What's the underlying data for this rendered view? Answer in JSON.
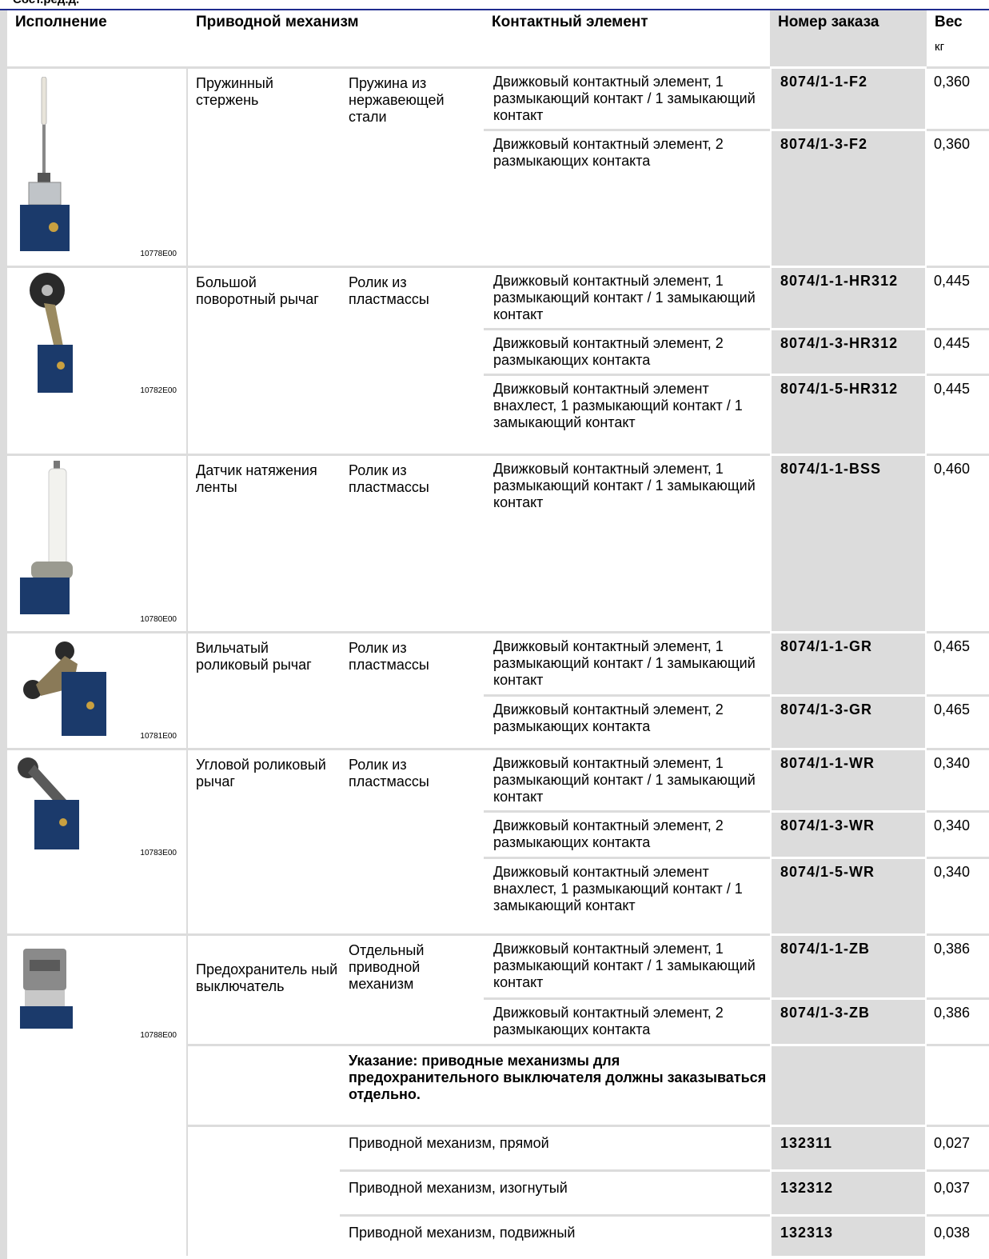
{
  "page_header": {
    "cut_title": "Сост.ред.д."
  },
  "table": {
    "headers": {
      "variant": "Исполнение",
      "actuator": "Приводной механизм",
      "contact": "Контактный элемент",
      "order": "Номер заказа",
      "weight": "Вес",
      "weight_unit": "кг"
    },
    "groups": [
      {
        "caption": "10778E00",
        "image_icon": "spring-rod-switch-photo",
        "actuator": "Пружинный стержень",
        "actuator_detail": "Пружина из нержавеющей стали",
        "rows": [
          {
            "contact": "Движковый контактный элемент, 1 размыкающий контакт / 1 замыкающий контакт",
            "order": "8074/1-1-F2",
            "weight": "0,360"
          },
          {
            "contact": "Движковый контактный элемент, 2 размыкающих контакта",
            "order": "8074/1-3-F2",
            "weight": "0,360"
          }
        ]
      },
      {
        "caption": "10782E00",
        "image_icon": "large-rotary-lever-switch-photo",
        "actuator": "Большой поворотный рычаг",
        "actuator_detail": "Ролик из пластмассы",
        "rows": [
          {
            "contact": "Движковый контактный элемент, 1 размыкающий контакт / 1 замыкающий контакт",
            "order": "8074/1-1-HR312",
            "weight": "0,445"
          },
          {
            "contact": "Движковый контактный элемент, 2 размыкающих контакта",
            "order": "8074/1-3-HR312",
            "weight": "0,445"
          },
          {
            "contact": "Движковый контактный элемент внахлест, 1 размыкающий контакт / 1 замыкающий контакт",
            "order": "8074/1-5-HR312",
            "weight": "0,445"
          }
        ]
      },
      {
        "caption": "10780E00",
        "image_icon": "belt-tension-sensor-photo",
        "actuator": "Датчик натяжения ленты",
        "actuator_detail": "Ролик из пластмассы",
        "rows": [
          {
            "contact": "Движковый контактный элемент, 1 размыкающий контакт / 1 замыкающий контакт",
            "order": "8074/1-1-BSS",
            "weight": "0,460"
          }
        ]
      },
      {
        "caption": "10781E00",
        "image_icon": "fork-roller-lever-photo",
        "actuator": "Вильчатый роликовый рычаг",
        "actuator_detail": "Ролик из пластмассы",
        "rows": [
          {
            "contact": "Движковый контактный элемент, 1 размыкающий контакт / 1 замыкающий контакт",
            "order": "8074/1-1-GR",
            "weight": "0,465"
          },
          {
            "contact": "Движковый контактный элемент, 2 размыкающих контакта",
            "order": "8074/1-3-GR",
            "weight": "0,465"
          }
        ]
      },
      {
        "caption": "10783E00",
        "image_icon": "angle-roller-lever-photo",
        "actuator": "Угловой роликовый рычаг",
        "actuator_detail": "Ролик из пластмассы",
        "rows": [
          {
            "contact": "Движковый контактный элемент, 1 размыкающий контакт / 1 замыкающий контакт",
            "order": "8074/1-1-WR",
            "weight": "0,340"
          },
          {
            "contact": "Движковый контактный элемент, 2 размыкающих контакта",
            "order": "8074/1-3-WR",
            "weight": "0,340"
          },
          {
            "contact": "Движковый контактный элемент внахлест, 1 размыкающий контакт / 1 замыкающий контакт",
            "order": "8074/1-5-WR",
            "weight": "0,340"
          }
        ]
      },
      {
        "caption": "10788E00",
        "image_icon": "safety-switch-photo",
        "actuator": "Предохранитель ный выключатель",
        "actuator_detail": "Отдельный приводной механизм",
        "rows": [
          {
            "contact": "Движковый контактный элемент, 1 размыкающий контакт / 1 замыкающий контакт",
            "order": "8074/1-1-ZB",
            "weight": "0,386"
          },
          {
            "contact": "Движковый контактный элемент, 2 размыкающих контакта",
            "order": "8074/1-3-ZB",
            "weight": "0,386"
          }
        ],
        "note": "Указание: приводные механизмы для предохранительного выключателя должны заказываться отдельно."
      }
    ],
    "accessories": [
      {
        "contact": "Приводной механизм, прямой",
        "order": "132311",
        "weight": "0,027"
      },
      {
        "contact": "Приводной механизм, изогнутый",
        "order": "132312",
        "weight": "0,037"
      },
      {
        "contact": "Приводной механизм, подвижный",
        "order": "132313",
        "weight": "0,038"
      }
    ]
  }
}
